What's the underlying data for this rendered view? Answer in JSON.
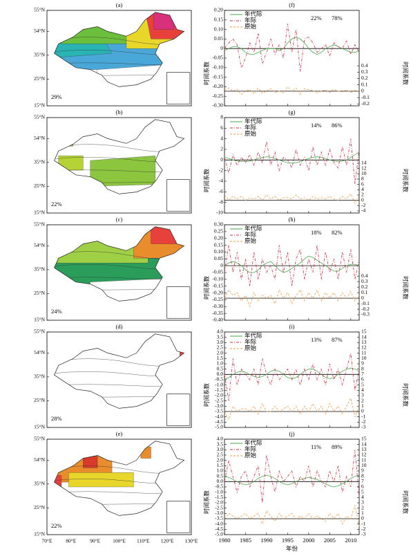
{
  "maps": {
    "lat_labels": [
      "55°N",
      "54°N",
      "35°N",
      "25°N",
      "15°N"
    ],
    "lon_labels": [
      "70°E",
      "80°E",
      "90°E",
      "100°E",
      "110°E",
      "120°E",
      "130°E"
    ],
    "panels": [
      {
        "label": "(a)",
        "percent": "29%"
      },
      {
        "label": "(b)",
        "percent": "22%"
      },
      {
        "label": "(c)",
        "percent": "24%"
      },
      {
        "label": "(d)",
        "percent": "28%"
      },
      {
        "label": "(e)",
        "percent": "22%"
      }
    ]
  },
  "chart_data": [
    {
      "type": "line",
      "panel_label": "(f)",
      "ylabel": "时间系数",
      "y2label": "时间系数",
      "percentages": [
        "22%",
        "78%"
      ],
      "x": [
        1980,
        1981,
        1982,
        1983,
        1984,
        1985,
        1986,
        1987,
        1988,
        1989,
        1990,
        1991,
        1992,
        1993,
        1994,
        1995,
        1996,
        1997,
        1998,
        1999,
        2000,
        2001,
        2002,
        2003,
        2004,
        2005,
        2006,
        2007,
        2008,
        2009,
        2010,
        2011,
        2012
      ],
      "xlim": [
        1980,
        2012
      ],
      "xticks": [
        1980,
        1985,
        1990,
        1995,
        2000,
        2005,
        2010
      ],
      "xtick_labels": false,
      "ylim": [
        -0.3,
        0.2
      ],
      "yticks": [
        {
          "value": 0.2,
          "label": "0.20"
        },
        0.15,
        {
          "value": 0.1,
          "label": "0.10"
        },
        0.05,
        0,
        -0.05,
        {
          "value": -0.1,
          "label": "-0.10"
        },
        -0.15,
        {
          "value": -0.2,
          "label": "-0.20"
        },
        -0.25,
        {
          "value": -0.3,
          "label": "-0.30"
        }
      ],
      "y2lim": [
        -0.23,
        1.27
      ],
      "y2ticks": [
        -0.2,
        -0.1,
        0,
        0.1,
        0.2,
        0.3,
        0.4
      ],
      "series": [
        {
          "name": "年代际",
          "color": "#3fae49",
          "dash": "solid",
          "values": [
            -0.01,
            0,
            0.01,
            0.01,
            0,
            -0.02,
            -0.03,
            -0.03,
            -0.02,
            -0.01,
            0,
            0,
            0,
            -0.01,
            0,
            0.03,
            0.05,
            0.06,
            0.05,
            0.03,
            0,
            -0.02,
            -0.03,
            -0.02,
            0,
            0.01,
            0.02,
            0.01,
            0,
            -0.01,
            -0.02,
            -0.02,
            -0.01
          ]
        },
        {
          "name": "年际",
          "color": "#d7263d",
          "dash": "dashdot",
          "values": [
            0,
            0.03,
            0.05,
            0.02,
            -0.1,
            -0.05,
            0.03,
            -0.02,
            0.08,
            -0.08,
            -0.02,
            0.05,
            -0.03,
            0.02,
            -0.05,
            0.13,
            -0.02,
            0.1,
            -0.12,
            0.05,
            0.06,
            0.03,
            -0.02,
            0,
            0.02,
            -0.04,
            0.03,
            0.01,
            0,
            0.04,
            -0.03,
            0.02,
            -0.02
          ]
        },
        {
          "name": "原始",
          "color": "#f39a3c",
          "dash": "dash",
          "axis": "y2",
          "values": [
            0.02,
            0.05,
            0,
            0.03,
            -0.05,
            0,
            0.02,
            -0.04,
            0.05,
            -0.03,
            0,
            0.04,
            -0.02,
            0,
            -0.03,
            0.07,
            0,
            0.05,
            -0.05,
            0.04,
            0.02,
            0.01,
            -0.03,
            0,
            0.02,
            -0.02,
            0.03,
            0,
            -0.01,
            0.02,
            -0.02,
            0.01,
            0
          ]
        }
      ]
    },
    {
      "type": "line",
      "panel_label": "(g)",
      "ylabel": "时间系数",
      "y2label": "时间系数",
      "percentages": [
        "14%",
        "86%"
      ],
      "x": [
        1980,
        1981,
        1982,
        1983,
        1984,
        1985,
        1986,
        1987,
        1988,
        1989,
        1990,
        1991,
        1992,
        1993,
        1994,
        1995,
        1996,
        1997,
        1998,
        1999,
        2000,
        2001,
        2002,
        2003,
        2004,
        2005,
        2006,
        2007,
        2008,
        2009,
        2010,
        2011,
        2012
      ],
      "xlim": [
        1980,
        2012
      ],
      "xticks": [
        1980,
        1985,
        1990,
        1995,
        2000,
        2005,
        2010
      ],
      "xtick_labels": false,
      "ylim": [
        -10,
        8
      ],
      "yticks": [
        8,
        6,
        4,
        2,
        0,
        -2,
        -4,
        -6,
        -8,
        -10
      ],
      "y2lim": [
        -4.8,
        31.2
      ],
      "y2ticks": [
        -4,
        -2,
        0,
        2,
        4,
        6,
        8,
        10,
        12,
        14
      ],
      "series": [
        {
          "name": "年代际",
          "color": "#3fae49",
          "dash": "solid",
          "values": [
            0.5,
            0.3,
            0,
            -0.2,
            -0.3,
            -0.3,
            -0.2,
            0,
            0.3,
            0.5,
            0.6,
            0.5,
            0.3,
            0,
            -0.3,
            -0.5,
            -0.6,
            -0.5,
            -0.3,
            0,
            0.3,
            0.5,
            0.6,
            0.5,
            0.3,
            0,
            -0.2,
            -0.3,
            -0.2,
            0,
            0.5,
            1,
            1.5
          ]
        },
        {
          "name": "年际",
          "color": "#d7263d",
          "dash": "dashdot",
          "values": [
            0.5,
            -2.5,
            1,
            -1,
            0.5,
            -0.5,
            1,
            -1,
            1.5,
            -0.5,
            3.5,
            -1,
            1.5,
            -2,
            0.5,
            0,
            -1.5,
            2,
            -1,
            0.5,
            -2,
            2.5,
            -1,
            1.5,
            -1,
            2,
            -0.5,
            -1.5,
            2.5,
            -1,
            4,
            -4.5,
            2
          ]
        },
        {
          "name": "原始",
          "color": "#f39a3c",
          "dash": "dash",
          "axis": "y2",
          "values": [
            2,
            0,
            1.5,
            0.5,
            1.5,
            0,
            1,
            0.5,
            1.5,
            0,
            2,
            0.5,
            1.5,
            0,
            1,
            1,
            0.5,
            2,
            0.5,
            1,
            0,
            1.5,
            0.5,
            1,
            0.5,
            1.5,
            0.5,
            0,
            1.5,
            0.5,
            2.5,
            -1,
            1.5
          ]
        }
      ]
    },
    {
      "type": "line",
      "panel_label": "(h)",
      "ylabel": "时间系数",
      "y2label": "时间系数",
      "percentages": [
        "18%",
        "82%"
      ],
      "x": [
        1980,
        1981,
        1982,
        1983,
        1984,
        1985,
        1986,
        1987,
        1988,
        1989,
        1990,
        1991,
        1992,
        1993,
        1994,
        1995,
        1996,
        1997,
        1998,
        1999,
        2000,
        2001,
        2002,
        2003,
        2004,
        2005,
        2006,
        2007,
        2008,
        2009,
        2010,
        2011,
        2012
      ],
      "xlim": [
        1980,
        2012
      ],
      "xticks": [
        1980,
        1985,
        1990,
        1995,
        2000,
        2005,
        2010
      ],
      "xtick_labels": false,
      "ylim": [
        -0.4,
        0.3
      ],
      "yticks": [
        {
          "value": 0.3,
          "label": "0.30"
        },
        0.25,
        {
          "value": 0.2,
          "label": "0.20"
        },
        0.15,
        {
          "value": 0.1,
          "label": "0.10"
        },
        0.05,
        0,
        -0.05,
        {
          "value": -0.1,
          "label": "-0.10"
        },
        -0.15,
        {
          "value": -0.2,
          "label": "-0.20"
        },
        -0.25,
        {
          "value": -0.3,
          "label": "-0.30"
        },
        -0.35,
        {
          "value": -0.4,
          "label": "-0.40"
        }
      ],
      "y2lim": [
        -0.4,
        1.33
      ],
      "y2ticks": [
        -0.3,
        -0.2,
        -0.1,
        0,
        0.1,
        0.2,
        0.3,
        0.4
      ],
      "series": [
        {
          "name": "年代际",
          "color": "#3fae49",
          "dash": "solid",
          "values": [
            0,
            0.02,
            0.03,
            0.02,
            0,
            -0.03,
            -0.05,
            -0.05,
            -0.03,
            0,
            0.02,
            0.03,
            0,
            -0.03,
            -0.05,
            -0.04,
            -0.02,
            0,
            0.02,
            0.05,
            0.07,
            0.06,
            0.04,
            0.02,
            0,
            -0.02,
            -0.04,
            -0.04,
            -0.02,
            0,
            0.01,
            0.01,
            0
          ]
        },
        {
          "name": "年际",
          "color": "#d7263d",
          "dash": "dashdot",
          "values": [
            -0.05,
            0.15,
            -0.05,
            0.1,
            -0.1,
            0.05,
            -0.15,
            0.1,
            -0.1,
            0.05,
            -0.05,
            0,
            -0.1,
            0.15,
            -0.05,
            0.1,
            -0.15,
            0.05,
            0.12,
            -0.1,
            0.05,
            -0.05,
            0.15,
            -0.1,
            0.1,
            -0.05,
            0.05,
            -0.1,
            0.1,
            -0.05,
            0.12,
            -0.1,
            0.05
          ]
        },
        {
          "name": "原始",
          "color": "#f39a3c",
          "dash": "dash",
          "axis": "y2",
          "values": [
            0,
            0.15,
            0.05,
            0.1,
            -0.05,
            0.05,
            -0.15,
            0.1,
            -0.05,
            0.05,
            0,
            0.05,
            -0.1,
            0.15,
            0,
            0.1,
            -0.1,
            0.05,
            0.15,
            -0.05,
            0.1,
            0,
            0.15,
            -0.05,
            0.1,
            0,
            0.1,
            -0.05,
            0.1,
            0,
            0.12,
            -0.05,
            0.05
          ]
        }
      ]
    },
    {
      "type": "line",
      "panel_label": "(i)",
      "ylabel": "时间系数",
      "y2label": "时间系数",
      "percentages": [
        "13%",
        "87%"
      ],
      "x": [
        1980,
        1981,
        1982,
        1983,
        1984,
        1985,
        1986,
        1987,
        1988,
        1989,
        1990,
        1991,
        1992,
        1993,
        1994,
        1995,
        1996,
        1997,
        1998,
        1999,
        2000,
        2001,
        2002,
        2003,
        2004,
        2005,
        2006,
        2007,
        2008,
        2009,
        2010,
        2011,
        2012
      ],
      "xlim": [
        1980,
        2012
      ],
      "xticks": [
        1980,
        1985,
        1990,
        1995,
        2000,
        2005,
        2010
      ],
      "xtick_labels": false,
      "ylim": [
        -5,
        4
      ],
      "yticks": [
        {
          "value": 4,
          "label": "4.0"
        },
        3.5,
        {
          "value": 3,
          "label": "3.0"
        },
        2.5,
        {
          "value": 2,
          "label": "2.0"
        },
        1.5,
        {
          "value": 1,
          "label": "1.0"
        },
        0.5,
        {
          "value": 0,
          "label": "0.0"
        },
        -0.5,
        {
          "value": -1,
          "label": "-1.0"
        },
        -1.5,
        {
          "value": -2,
          "label": "-2.0"
        },
        -2.5,
        {
          "value": -3,
          "label": "-3.0"
        },
        -3.5,
        {
          "value": -4,
          "label": "-4.0"
        },
        -4.5,
        {
          "value": -5,
          "label": "-5.0"
        }
      ],
      "y2lim": [
        -3,
        15
      ],
      "y2ticks": [
        -3,
        -2,
        -1,
        0,
        1,
        2,
        3,
        4,
        5,
        6,
        7,
        8,
        9,
        10,
        11,
        12,
        13,
        14,
        15
      ],
      "series": [
        {
          "name": "年代际",
          "color": "#3fae49",
          "dash": "solid",
          "values": [
            -0.5,
            -0.3,
            0,
            0.2,
            0.3,
            0.2,
            0,
            -0.2,
            -0.3,
            -0.2,
            0,
            0.3,
            0.4,
            0.3,
            0,
            -0.3,
            -0.4,
            -0.3,
            0,
            0.3,
            0.5,
            0.5,
            0.3,
            0,
            -0.3,
            -0.4,
            -0.3,
            0,
            0.3,
            0.5,
            0.6,
            0.5,
            0.3
          ]
        },
        {
          "name": "年际",
          "color": "#d7263d",
          "dash": "dashdot",
          "values": [
            0,
            -2.5,
            1.5,
            -1,
            0.5,
            0,
            -0.5,
            0.5,
            -1,
            1.5,
            0,
            -1,
            0.5,
            -0.5,
            0,
            0.5,
            -0.5,
            0.5,
            -1,
            0.5,
            -0.5,
            1,
            -0.5,
            0.5,
            -1,
            1,
            -0.5,
            0.5,
            -1,
            0.5,
            2,
            -1.5,
            0.5
          ]
        },
        {
          "name": "原始",
          "color": "#f39a3c",
          "dash": "dash",
          "axis": "y2",
          "values": [
            0,
            -1.5,
            1,
            0,
            0.5,
            0.5,
            0,
            1,
            -0.5,
            1.5,
            0,
            0,
            1,
            0,
            0.5,
            1,
            0,
            1,
            -0.5,
            1,
            0,
            1.5,
            0,
            1,
            -0.5,
            1.5,
            0,
            1,
            -0.5,
            1,
            2.5,
            -1,
            1
          ]
        }
      ]
    },
    {
      "type": "line",
      "panel_label": "(j)",
      "ylabel": "时间系数",
      "y2label": "时间系数",
      "percentages": [
        "11%",
        "89%"
      ],
      "xlabel": "年份",
      "x": [
        1980,
        1981,
        1982,
        1983,
        1984,
        1985,
        1986,
        1987,
        1988,
        1989,
        1990,
        1991,
        1992,
        1993,
        1994,
        1995,
        1996,
        1997,
        1998,
        1999,
        2000,
        2001,
        2002,
        2003,
        2004,
        2005,
        2006,
        2007,
        2008,
        2009,
        2010,
        2011,
        2012
      ],
      "xlim": [
        1980,
        2012
      ],
      "xticks": [
        1980,
        1985,
        1990,
        1995,
        2000,
        2005,
        2010
      ],
      "xtick_labels": true,
      "ylim": [
        -5,
        4
      ],
      "yticks": [
        {
          "value": 4,
          "label": "4.0"
        },
        3.5,
        {
          "value": 3,
          "label": "3.0"
        },
        2.5,
        {
          "value": 2,
          "label": "2.0"
        },
        1.5,
        {
          "value": 1,
          "label": "1.0"
        },
        0.5,
        {
          "value": 0,
          "label": "0.0"
        },
        -0.5,
        {
          "value": -1,
          "label": "-1.0"
        },
        -1.5,
        {
          "value": -2,
          "label": "-2.0"
        },
        -2.5,
        {
          "value": -3,
          "label": "-3.0"
        },
        -3.5,
        {
          "value": -4,
          "label": "-4.0"
        },
        -4.5,
        {
          "value": -5,
          "label": "-5.0"
        }
      ],
      "y2lim": [
        -3,
        15
      ],
      "y2ticks": [
        -3,
        -2,
        -1,
        0,
        1,
        2,
        3,
        4,
        5,
        6,
        7,
        8,
        9,
        10,
        11,
        12,
        13,
        14,
        15
      ],
      "series": [
        {
          "name": "年代际",
          "color": "#3fae49",
          "dash": "solid",
          "values": [
            0.5,
            0.4,
            0.2,
            0,
            -0.2,
            -0.3,
            -0.2,
            0,
            0.3,
            0.5,
            0.6,
            0.5,
            0.3,
            0,
            -0.2,
            -0.3,
            -0.2,
            0,
            0.2,
            0.3,
            0.4,
            0.3,
            0.2,
            0,
            -0.2,
            -0.4,
            -0.5,
            -0.4,
            -0.2,
            0,
            0.3,
            0.5,
            0.6
          ]
        },
        {
          "name": "年际",
          "color": "#d7263d",
          "dash": "dashdot",
          "values": [
            0,
            2,
            0.5,
            -1,
            0.5,
            1,
            -0.5,
            0.5,
            1.5,
            -2,
            2.5,
            0.5,
            -1,
            1,
            0,
            0.5,
            1,
            -0.5,
            0.5,
            0,
            1.5,
            -0.5,
            1,
            0,
            -0.5,
            1,
            0,
            1.5,
            -1,
            0.5,
            -0.5,
            3,
            -1.5
          ]
        },
        {
          "name": "原始",
          "color": "#f39a3c",
          "dash": "dash",
          "axis": "y2",
          "values": [
            0,
            1,
            0.5,
            0,
            0.5,
            1,
            0,
            0.5,
            1,
            -1,
            1.5,
            0.5,
            -0.5,
            1,
            0,
            0.5,
            1,
            0,
            0.5,
            0,
            1,
            0,
            0.5,
            0,
            -0.5,
            1,
            0,
            1,
            -1,
            0.5,
            0,
            2.5,
            -1.5
          ]
        }
      ]
    }
  ]
}
